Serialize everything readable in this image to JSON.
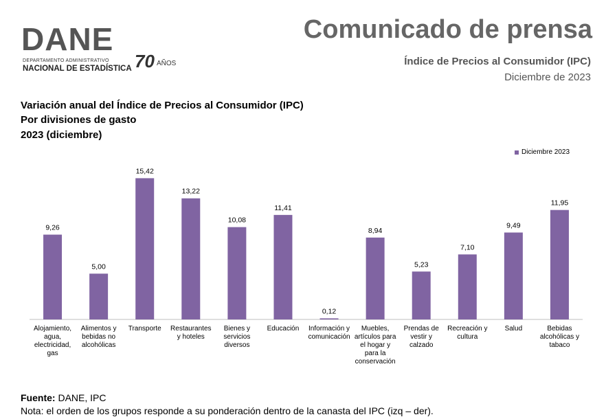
{
  "logo": {
    "word": "DANE",
    "dept": "DEPARTAMENTO ADMINISTRATIVO",
    "nacional": "NACIONAL DE ESTADÍSTICA",
    "anniversary": "70",
    "anos": "AÑOS"
  },
  "header": {
    "title": "Comunicado de prensa",
    "subtitle": "Índice de Precios al Consumidor (IPC)",
    "date": "Diciembre de 2023"
  },
  "chart_data": {
    "type": "bar",
    "title_lines": [
      "Variación anual del Índice de Precios al Consumidor (IPC)",
      "Por divisiones de gasto",
      "2023 (diciembre)"
    ],
    "categories": [
      [
        "Alojamiento,",
        "agua,",
        "electricidad,",
        "gas"
      ],
      [
        "Alimentos y",
        "bebidas no",
        "alcohólicas"
      ],
      [
        "Transporte"
      ],
      [
        "Restaurantes",
        "y hoteles"
      ],
      [
        "Bienes y",
        "servicios",
        "diversos"
      ],
      [
        "Educación"
      ],
      [
        "Información y",
        "comunicación"
      ],
      [
        "Muebles,",
        "artículos para",
        "el hogar y",
        "para la",
        "conservación"
      ],
      [
        "Prendas de",
        "vestir y",
        "calzado"
      ],
      [
        "Recreación y",
        "cultura"
      ],
      [
        "Salud"
      ],
      [
        "Bebidas",
        "alcohólicas y",
        "tabaco"
      ]
    ],
    "series": [
      {
        "name": "Diciembre 2023",
        "values": [
          9.26,
          5.0,
          15.42,
          13.22,
          10.08,
          11.41,
          0.12,
          8.94,
          5.23,
          7.1,
          9.49,
          11.95
        ],
        "labels": [
          "9,26",
          "5,00",
          "15,42",
          "13,22",
          "10,08",
          "11,41",
          "0,12",
          "8,94",
          "5,23",
          "7,10",
          "9,49",
          "11,95"
        ]
      }
    ],
    "ylim": [
      0,
      16.5
    ],
    "grid": false,
    "legend_position": "top-right",
    "bar_color": "#8064a2"
  },
  "footer": {
    "fuente_label": "Fuente:",
    "fuente_text": " DANE, IPC",
    "nota": "Nota: el orden de los grupos responde a su ponderación dentro de la canasta del IPC (izq – der)."
  }
}
